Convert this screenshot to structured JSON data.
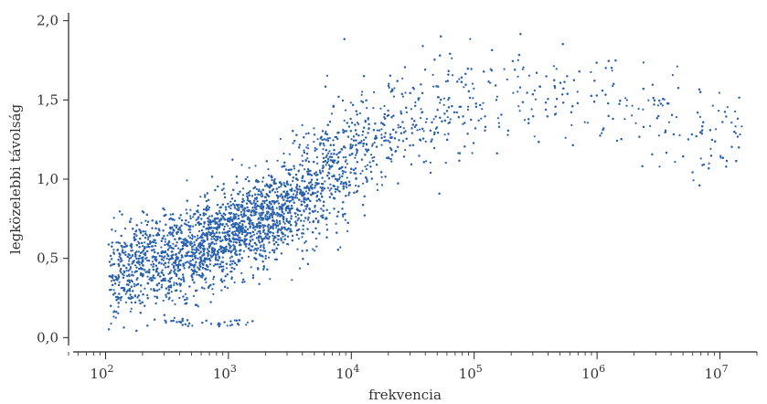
{
  "chart_data": {
    "type": "scatter",
    "xlabel": "frekvencia",
    "ylabel": "legközelebbi távolság",
    "x_scale": "log",
    "xlim": [
      50,
      20000000
    ],
    "ylim": [
      -0.05,
      2.05
    ],
    "x_ticks": [
      {
        "value": 100,
        "base": "10",
        "exp": "2"
      },
      {
        "value": 1000,
        "base": "10",
        "exp": "3"
      },
      {
        "value": 10000,
        "base": "10",
        "exp": "4"
      },
      {
        "value": 100000,
        "base": "10",
        "exp": "5"
      },
      {
        "value": 1000000,
        "base": "10",
        "exp": "6"
      },
      {
        "value": 10000000,
        "base": "10",
        "exp": "7"
      }
    ],
    "y_ticks": [
      {
        "value": 0.0,
        "label": "0,0"
      },
      {
        "value": 0.5,
        "label": "0,5"
      },
      {
        "value": 1.0,
        "label": "1,0"
      },
      {
        "value": 1.5,
        "label": "1,5"
      },
      {
        "value": 2.0,
        "label": "2,0"
      }
    ],
    "grid": false,
    "point_color": "#2a62b0",
    "points_note_density": [
      {
        "x": 100,
        "y": 0.35
      },
      {
        "x": 150,
        "y": 0.45
      },
      {
        "x": 200,
        "y": 0.5
      },
      {
        "x": 300,
        "y": 0.5
      },
      {
        "x": 500,
        "y": 0.55
      },
      {
        "x": 1000,
        "y": 0.65
      },
      {
        "x": 2000,
        "y": 0.75
      },
      {
        "x": 5000,
        "y": 0.95
      },
      {
        "x": 10000,
        "y": 1.15
      },
      {
        "x": 20000,
        "y": 1.3
      },
      {
        "x": 50000,
        "y": 1.45
      },
      {
        "x": 100000,
        "y": 1.5
      },
      {
        "x": 300000,
        "y": 1.52
      },
      {
        "x": 1000000,
        "y": 1.5
      },
      {
        "x": 3000000,
        "y": 1.45
      },
      {
        "x": 10000000,
        "y": 1.3
      }
    ]
  }
}
